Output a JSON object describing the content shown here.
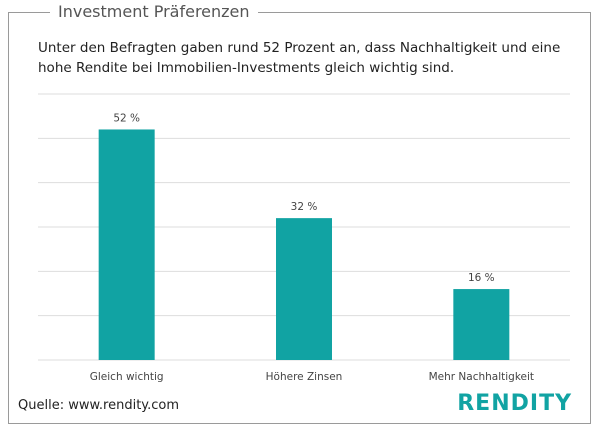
{
  "header": {
    "title": "Investment Präferenzen",
    "subtitle": "Unter den Befragten gaben rund 52 Prozent an, dass Nachhaltigkeit und eine hohe Rendite bei Immobilien-Investments gleich wichtig sind."
  },
  "chart_data": {
    "type": "bar",
    "categories": [
      "Gleich wichtig",
      "Höhere Zinsen",
      "Mehr Nachhaltigkeit"
    ],
    "values": [
      52,
      32,
      16
    ],
    "value_labels": [
      "52 %",
      "32 %",
      "16 %"
    ],
    "color": "#11a3a3",
    "ylim": [
      0,
      60
    ],
    "yticks": [
      0,
      10,
      20,
      30,
      40,
      50,
      60
    ],
    "grid": true
  },
  "footer": {
    "source": "Quelle: www.rendity.com",
    "logo": "RENDITY"
  }
}
